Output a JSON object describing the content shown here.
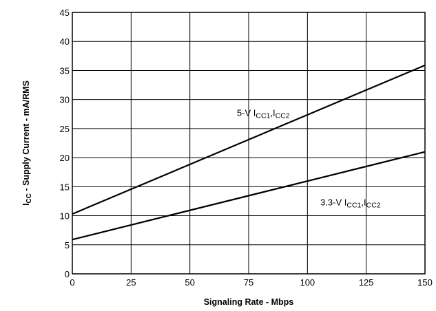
{
  "chart_data": {
    "type": "line",
    "xlabel": "Signaling Rate - Mbps",
    "ylabel": {
      "parts": [
        {
          "text": "I",
          "sub": false
        },
        {
          "text": "CC",
          "sub": true
        },
        {
          "text": " - Supply Current - mA/RMS",
          "sub": false
        }
      ]
    },
    "xlim": [
      0,
      150
    ],
    "ylim": [
      0,
      45
    ],
    "xticks": [
      0,
      25,
      50,
      75,
      100,
      125,
      150
    ],
    "yticks": [
      0,
      5,
      10,
      15,
      20,
      25,
      30,
      35,
      40,
      45
    ],
    "grid": true,
    "series": [
      {
        "name": "5-V ICC1,ICC2",
        "label_parts": [
          {
            "text": "5-V I",
            "sub": false
          },
          {
            "text": "CC1",
            "sub": true
          },
          {
            "text": ",I",
            "sub": false
          },
          {
            "text": "CC2",
            "sub": true
          }
        ],
        "x": [
          0,
          150
        ],
        "y": [
          10.3,
          35.9
        ],
        "label_at": [
          70,
          27.2
        ]
      },
      {
        "name": "3.3-V ICC1,ICC2",
        "label_parts": [
          {
            "text": "3.3-V I",
            "sub": false
          },
          {
            "text": "CC1",
            "sub": true
          },
          {
            "text": ",I",
            "sub": false
          },
          {
            "text": "CC2",
            "sub": true
          }
        ],
        "x": [
          0,
          150
        ],
        "y": [
          5.9,
          21.0
        ],
        "label_at": [
          105.5,
          11.8
        ]
      }
    ]
  }
}
